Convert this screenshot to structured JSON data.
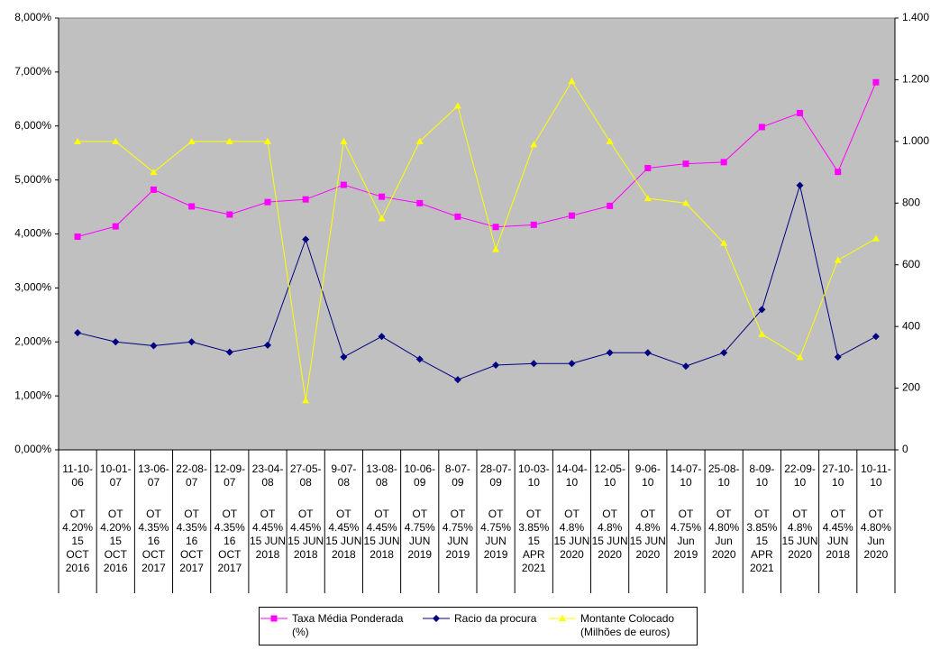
{
  "chart_data": {
    "type": "line",
    "categories": [
      "11-10-06",
      "10-01-07",
      "13-06-07",
      "22-08-07",
      "12-09-07",
      "23-04-08",
      "27-05-08",
      "9-07-08",
      "13-08-08",
      "10-06-09",
      "8-07-09",
      "28-07-09",
      "10-03-10",
      "14-04-10",
      "12-05-10",
      "9-06-10",
      "14-07-10",
      "25-08-10",
      "8-09-10",
      "22-09-10",
      "27-10-10",
      "10-11-10"
    ],
    "category_details": [
      "OT 4.20% 15 OCT 2016",
      "OT 4.20% 15 OCT 2016",
      "OT 4.35% 16 OCT 2017",
      "OT 4.35% 16 OCT 2017",
      "OT 4.35% 16 OCT 2017",
      "OT 4.45% 15 JUN 2018",
      "OT 4.45% 15 JUN 2018",
      "OT 4.45% 15 JUN 2018",
      "OT 4.45% 15 JUN 2018",
      "OT 4.75% JUN 2019",
      "OT 4.75% JUN 2019",
      "OT 4.75% JUN 2019",
      "OT 3.85% 15 APR 2021",
      "OT 4.8% 15 JUN 2020",
      "OT 4.8% 15 JUN 2020",
      "OT 4.8% 15 JUN 2020",
      "OT 4.75% Jun 2019",
      "OT 4.80% Jun 2020",
      "OT 3.85% 15 APR 2021",
      "OT 4.8% 15 JUN 2020",
      "OT 4.45% JUN 2018",
      "OT 4.80% Jun 2020"
    ],
    "series": [
      {
        "name": "Taxa Média Ponderada (%)",
        "color": "#ff00ff",
        "marker": "square",
        "values": [
          3.95,
          4.14,
          4.82,
          4.51,
          4.36,
          4.59,
          4.64,
          4.91,
          4.69,
          4.57,
          4.32,
          4.13,
          4.17,
          4.34,
          4.52,
          5.22,
          5.3,
          5.33,
          5.98,
          6.24,
          5.15,
          6.81
        ]
      },
      {
        "name": "Racio da procura",
        "color": "#000080",
        "marker": "diamond",
        "values": [
          2.17,
          2.0,
          1.93,
          2.0,
          1.81,
          1.94,
          3.9,
          1.72,
          2.1,
          1.68,
          1.3,
          1.57,
          1.6,
          1.6,
          1.8,
          1.8,
          1.55,
          1.8,
          2.6,
          4.9,
          1.72,
          2.1
        ]
      },
      {
        "name": "Montante Colocado (Milhões de euros)",
        "color": "#ffff00",
        "marker": "triangle",
        "axis": "y2",
        "values": [
          1000,
          1000,
          900,
          1000,
          1000,
          1000,
          160,
          1000,
          750,
          1000,
          1115,
          650,
          990,
          1195,
          1000,
          815,
          800,
          670,
          375,
          300,
          615,
          685
        ]
      }
    ],
    "ylim": [
      0,
      8
    ],
    "yticks": [
      {
        "value": 0,
        "label": "0,000%"
      },
      {
        "value": 1,
        "label": "1,000%"
      },
      {
        "value": 2,
        "label": "2,000%"
      },
      {
        "value": 3,
        "label": "3,000%"
      },
      {
        "value": 4,
        "label": "4,000%"
      },
      {
        "value": 5,
        "label": "5,000%"
      },
      {
        "value": 6,
        "label": "6,000%"
      },
      {
        "value": 7,
        "label": "7,000%"
      },
      {
        "value": 8,
        "label": "8,000%"
      }
    ],
    "y2lim": [
      0,
      1400
    ],
    "y2ticks": [
      0,
      200,
      400,
      600,
      800,
      {
        "value": 1000,
        "label": "1.000"
      },
      {
        "value": 1200,
        "label": "1.200"
      },
      {
        "value": 1400,
        "label": "1.400"
      }
    ],
    "grid": false
  }
}
